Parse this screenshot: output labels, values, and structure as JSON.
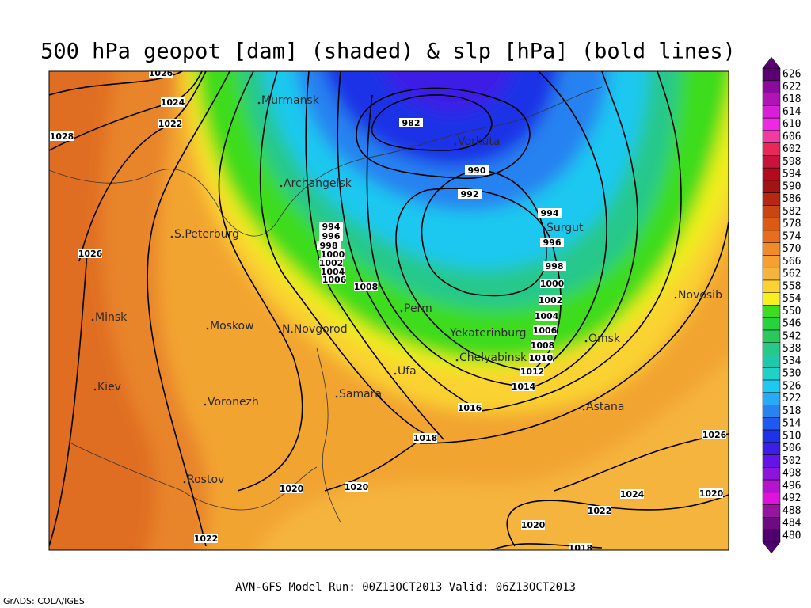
{
  "header": {
    "title": "500 hPa geopot [dam] (shaded) & slp [hPa] (bold lines)"
  },
  "map": {
    "cities": [
      "Murmansk",
      "Vorkuta",
      "Archangelsk",
      "Surgut",
      "S.Peterburg",
      "Novosib",
      "Minsk",
      "Moskow",
      "N.Novgorod",
      "Perm",
      "Yekaterinburg",
      "Omsk",
      "Chelyabinsk",
      "Ufa",
      "Kiev",
      "Samara",
      "Voronezh",
      "Astana",
      "Rostov"
    ],
    "isobar_labels": [
      1026,
      1024,
      1022,
      1028,
      1026,
      982,
      990,
      992,
      994,
      996,
      998,
      1000,
      1002,
      1004,
      1006,
      1008,
      1010,
      1012,
      1014,
      1016,
      1018,
      1020,
      1020,
      1020,
      1022,
      1024,
      1026,
      1020,
      1022,
      1018,
      994,
      996,
      998,
      1000,
      1002,
      1004,
      1006,
      1008
    ]
  },
  "colorbar": {
    "labels": [
      626,
      622,
      618,
      614,
      610,
      606,
      602,
      598,
      594,
      590,
      586,
      582,
      578,
      574,
      570,
      566,
      562,
      558,
      554,
      550,
      546,
      542,
      538,
      534,
      530,
      526,
      522,
      518,
      514,
      510,
      506,
      502,
      498,
      496,
      492,
      488,
      484,
      480
    ],
    "colors": [
      "#5a0070",
      "#8c0a9c",
      "#b014b4",
      "#d81ed8",
      "#f028e6",
      "#f03ca0",
      "#e8285a",
      "#c8143c",
      "#b40a1e",
      "#a01414",
      "#b42814",
      "#c84614",
      "#dc5a14",
      "#e66e1e",
      "#f08c28",
      "#f5a032",
      "#f5b43c",
      "#fad232",
      "#f5f01e",
      "#3cdc1e",
      "#28d23c",
      "#28c85a",
      "#28c88c",
      "#1ec8aa",
      "#1ed2c8",
      "#1ec8f0",
      "#28aaf5",
      "#2882f0",
      "#1e5af0",
      "#1e32e6",
      "#3c1ee6",
      "#6414e6",
      "#8c14dc",
      "#b414d2",
      "#dc14dc",
      "#9614a0",
      "#6e0a82",
      "#50006e"
    ]
  },
  "footer": {
    "run": "AVN-GFS Model Run: 00Z13OCT2013 Valid: 06Z13OCT2013",
    "credit": "GrADS: COLA/IGES"
  }
}
